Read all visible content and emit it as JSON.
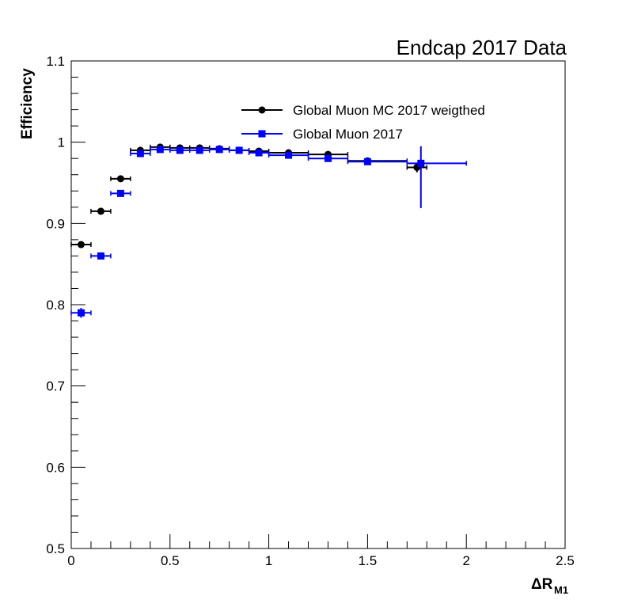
{
  "chart_data": {
    "type": "scatter",
    "title": "Endcap 2017 Data",
    "xlabel": "ΔR",
    "xlabel_subscript": "M1",
    "ylabel": "Efficiency",
    "xlim": [
      0,
      2.5
    ],
    "ylim": [
      0.5,
      1.1
    ],
    "x_ticks": [
      "0",
      "0.5",
      "1",
      "1.5",
      "2",
      "2.5"
    ],
    "y_ticks": [
      "0.5",
      "0.6",
      "0.7",
      "0.8",
      "0.9",
      "1",
      "1.1"
    ],
    "grid": false,
    "legend_position": "top-right",
    "series": [
      {
        "name": "Global Muon MC 2017 weigthed",
        "color": "#000000",
        "marker": "circle",
        "points": [
          {
            "x": 0.05,
            "y": 0.874,
            "xlo": 0.0,
            "xhi": 0.1,
            "yerr": 0.003
          },
          {
            "x": 0.15,
            "y": 0.915,
            "xlo": 0.1,
            "xhi": 0.2,
            "yerr": 0.002
          },
          {
            "x": 0.25,
            "y": 0.955,
            "xlo": 0.2,
            "xhi": 0.3,
            "yerr": 0.002
          },
          {
            "x": 0.35,
            "y": 0.99,
            "xlo": 0.3,
            "xhi": 0.4,
            "yerr": 0.001
          },
          {
            "x": 0.45,
            "y": 0.994,
            "xlo": 0.4,
            "xhi": 0.5,
            "yerr": 0.001
          },
          {
            "x": 0.55,
            "y": 0.993,
            "xlo": 0.5,
            "xhi": 0.6,
            "yerr": 0.001
          },
          {
            "x": 0.65,
            "y": 0.993,
            "xlo": 0.6,
            "xhi": 0.7,
            "yerr": 0.001
          },
          {
            "x": 0.75,
            "y": 0.992,
            "xlo": 0.7,
            "xhi": 0.8,
            "yerr": 0.001
          },
          {
            "x": 0.85,
            "y": 0.99,
            "xlo": 0.8,
            "xhi": 0.9,
            "yerr": 0.001
          },
          {
            "x": 0.95,
            "y": 0.989,
            "xlo": 0.9,
            "xhi": 1.0,
            "yerr": 0.001
          },
          {
            "x": 1.1,
            "y": 0.987,
            "xlo": 1.0,
            "xhi": 1.2,
            "yerr": 0.001
          },
          {
            "x": 1.3,
            "y": 0.985,
            "xlo": 1.2,
            "xhi": 1.4,
            "yerr": 0.002
          },
          {
            "x": 1.5,
            "y": 0.977,
            "xlo": 1.4,
            "xhi": 1.7,
            "yerr": 0.002
          },
          {
            "x": 1.75,
            "y": 0.969,
            "xlo": 1.7,
            "xhi": 1.8,
            "yerr": 0.006
          }
        ]
      },
      {
        "name": "Global Muon 2017",
        "color": "#0000ff",
        "marker": "square",
        "points": [
          {
            "x": 0.05,
            "y": 0.79,
            "xlo": 0.0,
            "xhi": 0.1,
            "yerr": 0.006
          },
          {
            "x": 0.15,
            "y": 0.86,
            "xlo": 0.1,
            "xhi": 0.2,
            "yerr": 0.003
          },
          {
            "x": 0.25,
            "y": 0.937,
            "xlo": 0.2,
            "xhi": 0.3,
            "yerr": 0.002
          },
          {
            "x": 0.35,
            "y": 0.986,
            "xlo": 0.3,
            "xhi": 0.4,
            "yerr": 0.001
          },
          {
            "x": 0.45,
            "y": 0.991,
            "xlo": 0.4,
            "xhi": 0.5,
            "yerr": 0.001
          },
          {
            "x": 0.55,
            "y": 0.99,
            "xlo": 0.5,
            "xhi": 0.6,
            "yerr": 0.001
          },
          {
            "x": 0.65,
            "y": 0.99,
            "xlo": 0.6,
            "xhi": 0.7,
            "yerr": 0.001
          },
          {
            "x": 0.75,
            "y": 0.991,
            "xlo": 0.7,
            "xhi": 0.8,
            "yerr": 0.001
          },
          {
            "x": 0.85,
            "y": 0.99,
            "xlo": 0.8,
            "xhi": 0.9,
            "yerr": 0.001
          },
          {
            "x": 0.95,
            "y": 0.987,
            "xlo": 0.9,
            "xhi": 1.0,
            "yerr": 0.001
          },
          {
            "x": 1.1,
            "y": 0.984,
            "xlo": 1.0,
            "xhi": 1.2,
            "yerr": 0.001
          },
          {
            "x": 1.3,
            "y": 0.98,
            "xlo": 1.2,
            "xhi": 1.4,
            "yerr": 0.002
          },
          {
            "x": 1.5,
            "y": 0.976,
            "xlo": 1.4,
            "xhi": 1.7,
            "yerr": 0.002
          },
          {
            "x": 1.77,
            "y": 0.974,
            "xlo": 1.7,
            "xhi": 2.0,
            "yerr": 0.021,
            "yerr_lo": 0.055
          }
        ]
      }
    ]
  }
}
